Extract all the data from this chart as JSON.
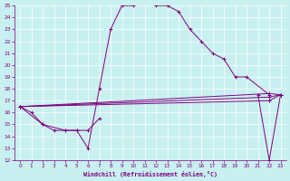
{
  "xlabel": "Windchill (Refroidissement éolien,°C)",
  "xlim": [
    -0.5,
    23.5
  ],
  "ylim": [
    12,
    25
  ],
  "xticks": [
    0,
    1,
    2,
    3,
    4,
    5,
    6,
    7,
    8,
    9,
    10,
    11,
    12,
    13,
    14,
    15,
    16,
    17,
    18,
    19,
    20,
    21,
    22,
    23
  ],
  "yticks": [
    12,
    13,
    14,
    15,
    16,
    17,
    18,
    19,
    20,
    21,
    22,
    23,
    24,
    25
  ],
  "bg_color": "#c8f0f0",
  "line_color": "#800080",
  "s1x": [
    0,
    1,
    2,
    3,
    4,
    5,
    6,
    7,
    8,
    9,
    10,
    11,
    12,
    13,
    14,
    15,
    16,
    17,
    18,
    19,
    20,
    22
  ],
  "s1y": [
    16.5,
    16.0,
    15.0,
    14.5,
    14.5,
    14.5,
    13.0,
    18.0,
    23.0,
    25.0,
    25.0,
    25.5,
    25.0,
    25.0,
    24.5,
    23.0,
    22.0,
    21.0,
    20.5,
    19.0,
    19.0,
    17.5
  ],
  "s2x": [
    0,
    2,
    4,
    5,
    6,
    7
  ],
  "s2y": [
    16.5,
    15.0,
    14.5,
    14.5,
    14.5,
    15.5
  ],
  "s3x": [
    0,
    22,
    23
  ],
  "s3y": [
    16.5,
    17.0,
    17.5
  ],
  "s4x": [
    0,
    22,
    23
  ],
  "s4y": [
    16.5,
    17.3,
    17.5
  ],
  "s5x": [
    0,
    22,
    23
  ],
  "s5y": [
    16.5,
    17.6,
    17.5
  ],
  "s6x": [
    21,
    22,
    23
  ],
  "s6y": [
    17.5,
    12.0,
    17.5
  ]
}
